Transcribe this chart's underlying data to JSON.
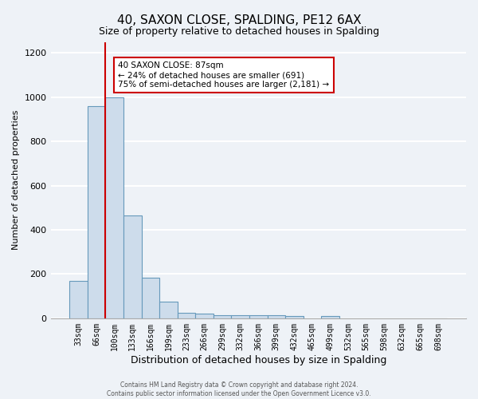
{
  "title": "40, SAXON CLOSE, SPALDING, PE12 6AX",
  "subtitle": "Size of property relative to detached houses in Spalding",
  "xlabel": "Distribution of detached houses by size in Spalding",
  "ylabel": "Number of detached properties",
  "categories": [
    "33sqm",
    "66sqm",
    "100sqm",
    "133sqm",
    "166sqm",
    "199sqm",
    "233sqm",
    "266sqm",
    "299sqm",
    "332sqm",
    "366sqm",
    "399sqm",
    "432sqm",
    "465sqm",
    "499sqm",
    "532sqm",
    "565sqm",
    "598sqm",
    "632sqm",
    "665sqm",
    "698sqm"
  ],
  "values": [
    170,
    960,
    1000,
    465,
    185,
    75,
    25,
    20,
    15,
    15,
    15,
    15,
    10,
    0,
    10,
    0,
    0,
    0,
    0,
    0,
    0
  ],
  "bar_color": "#cddceb",
  "bar_edge_color": "#6699bb",
  "red_line_index": 1.5,
  "annotation_title": "40 SAXON CLOSE: 87sqm",
  "annotation_line1": "← 24% of detached houses are smaller (691)",
  "annotation_line2": "75% of semi-detached houses are larger (2,181) →",
  "annotation_box_facecolor": "#ffffff",
  "annotation_box_edgecolor": "#cc0000",
  "ylim": [
    0,
    1250
  ],
  "yticks": [
    0,
    200,
    400,
    600,
    800,
    1000,
    1200
  ],
  "footer_line1": "Contains HM Land Registry data © Crown copyright and database right 2024.",
  "footer_line2": "Contains public sector information licensed under the Open Government Licence v3.0.",
  "background_color": "#eef2f7",
  "grid_color": "#ffffff",
  "title_fontsize": 11,
  "subtitle_fontsize": 9,
  "xlabel_fontsize": 9,
  "ylabel_fontsize": 8,
  "tick_fontsize": 7,
  "annotation_fontsize": 7.5,
  "footer_fontsize": 5.5
}
